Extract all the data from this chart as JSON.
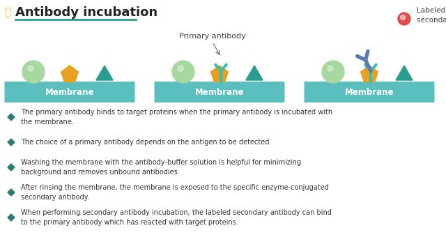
{
  "title": "Antibody incubation",
  "background_color": "#ffffff",
  "title_color": "#222222",
  "title_underline_color": "#2a9d8f",
  "membrane_color": "#5bbfbf",
  "membrane_text": "Membrane",
  "membrane_text_color": "#ffffff",
  "protein_sphere_color": "#a8d8a0",
  "protein_pentagon_color": "#e8a020",
  "protein_triangle_color": "#2a9d8f",
  "antibody_primary_color": "#3dbfb0",
  "antibody_secondary_color": "#5a7ab0",
  "label_red_color": "#e05050",
  "bullet_color": "#2a7c6f",
  "lightbulb_color": "#e8c030",
  "bullet_points": [
    "The primary antibody binds to target proteins when the primary antibody is incubated with\nthe membrane.",
    "The choice of a primary antibody depends on the antigen to be detected.",
    "Washing the membrane with the antibody-buffer solution is helpful for minimizing\nbackground and removes unbound antibodies.",
    "After rinsing the membrane, the membrane is exposed to the specific enzyme-conjugated\nsecondary antibody.",
    "When performing secondary antibody incubation, the labeled secondary antibody can bind\nto the primary antibody which has reacted with target proteins."
  ]
}
